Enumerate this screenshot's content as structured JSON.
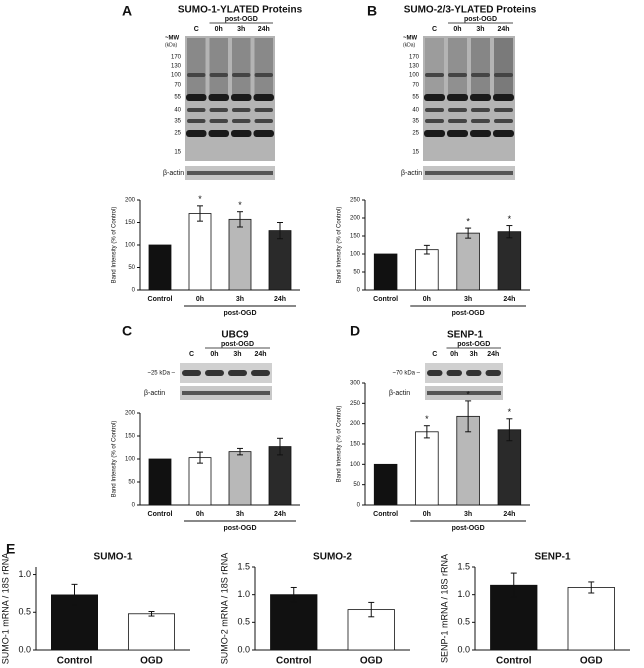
{
  "panel_labels": [
    "A",
    "B",
    "C",
    "D",
    "E"
  ],
  "blots": [
    {
      "title": "SUMO-1-YLATED Proteins",
      "group": "post-OGD",
      "lanes": [
        "C",
        "0h",
        "3h",
        "24h"
      ],
      "mw_label": "~MW",
      "mw_unit": "(kDa)",
      "mw": [
        "170",
        "130",
        "100",
        "70",
        "55",
        "40",
        "35",
        "25",
        "15"
      ],
      "loading": "β-actin"
    },
    {
      "title": "SUMO-2/3-YLATED Proteins",
      "group": "post-OGD",
      "lanes": [
        "C",
        "0h",
        "3h",
        "24h"
      ],
      "mw_label": "~MW",
      "mw_unit": "(kDa)",
      "mw": [
        "170",
        "130",
        "100",
        "70",
        "55",
        "40",
        "35",
        "25",
        "15"
      ],
      "loading": "β-actin"
    },
    {
      "title": "UBC9",
      "group": "post-OGD",
      "lanes": [
        "C",
        "0h",
        "3h",
        "24h"
      ],
      "mw_label": "~25 kDa –",
      "loading": "β-actin"
    },
    {
      "title": "SENP-1",
      "group": "post-OGD",
      "lanes": [
        "C",
        "0h",
        "3h",
        "24h"
      ],
      "mw_label": "~70 kDa –",
      "loading": "β-actin"
    }
  ],
  "chart_data": [
    {
      "type": "bar",
      "y_label": "Band Intensity (% of Control)",
      "x_group_label": "post-OGD",
      "categories": [
        "Control",
        "0h",
        "3h",
        "24h"
      ],
      "values": [
        100,
        170,
        157,
        132
      ],
      "errors": [
        0,
        17,
        17,
        18
      ],
      "markers": [
        null,
        "*",
        "*",
        null
      ],
      "colors": [
        "#111111",
        "#ffffff",
        "#b8b8b8",
        "#2a2a2a"
      ],
      "ylim": [
        0,
        200
      ],
      "yticks": [
        0,
        50,
        100,
        150,
        200
      ]
    },
    {
      "type": "bar",
      "y_label": "Band Intensity (% of Control)",
      "x_group_label": "post-OGD",
      "categories": [
        "Control",
        "0h",
        "3h",
        "24h"
      ],
      "values": [
        100,
        112,
        158,
        162
      ],
      "errors": [
        0,
        12,
        14,
        17
      ],
      "markers": [
        null,
        null,
        "*",
        "*"
      ],
      "colors": [
        "#111111",
        "#ffffff",
        "#b8b8b8",
        "#2a2a2a"
      ],
      "ylim": [
        0,
        250
      ],
      "yticks": [
        0,
        50,
        100,
        150,
        200,
        250
      ]
    },
    {
      "type": "bar",
      "y_label": "Band Intensity (% of Control)",
      "x_group_label": "post-OGD",
      "categories": [
        "Control",
        "0h",
        "3h",
        "24h"
      ],
      "values": [
        100,
        103,
        116,
        127
      ],
      "errors": [
        0,
        12,
        7,
        18
      ],
      "colors": [
        "#111111",
        "#ffffff",
        "#b8b8b8",
        "#2a2a2a"
      ],
      "ylim": [
        0,
        200
      ],
      "yticks": [
        0,
        50,
        100,
        150,
        200
      ]
    },
    {
      "type": "bar",
      "y_label": "Band Intensity (% of Control)",
      "x_group_label": "post-OGD",
      "categories": [
        "Control",
        "0h",
        "3h",
        "24h"
      ],
      "values": [
        100,
        180,
        218,
        185
      ],
      "errors": [
        0,
        15,
        38,
        27
      ],
      "markers": [
        null,
        "*",
        "*",
        "*"
      ],
      "colors": [
        "#111111",
        "#ffffff",
        "#b8b8b8",
        "#2a2a2a"
      ],
      "ylim": [
        0,
        300
      ],
      "yticks": [
        0,
        50,
        100,
        150,
        200,
        250,
        300
      ]
    },
    {
      "type": "bar",
      "title": "SUMO-1",
      "y_label": "SUMO-1 mRNA / 18S rRNA",
      "categories": [
        "Control",
        "OGD"
      ],
      "values": [
        0.73,
        0.48
      ],
      "errors": [
        0.14,
        0.03
      ],
      "colors": [
        "#111111",
        "#ffffff"
      ],
      "ylim": [
        0,
        1.1
      ],
      "yticks": [
        {
          "value": 0,
          "label": "0.0"
        },
        0.5,
        {
          "value": 1,
          "label": "1.0"
        }
      ]
    },
    {
      "type": "bar",
      "title": "SUMO-2",
      "y_label": "SUMO-2 mRNA / 18S rRNA",
      "categories": [
        "Control",
        "OGD"
      ],
      "values": [
        1.0,
        0.73
      ],
      "errors": [
        0.13,
        0.13
      ],
      "colors": [
        "#111111",
        "#ffffff"
      ],
      "ylim": [
        0,
        1.5
      ],
      "yticks": [
        {
          "value": 0,
          "label": "0.0"
        },
        0.5,
        {
          "value": 1,
          "label": "1.0"
        },
        1.5
      ]
    },
    {
      "type": "bar",
      "title": "SENP-1",
      "y_label": "SENP-1 mRNA / 18S rRNA",
      "categories": [
        "Control",
        "OGD"
      ],
      "values": [
        1.17,
        1.13
      ],
      "errors": [
        0.22,
        0.1
      ],
      "colors": [
        "#111111",
        "#ffffff"
      ],
      "ylim": [
        0,
        1.5
      ],
      "yticks": [
        {
          "value": 0,
          "label": "0.0"
        },
        0.5,
        {
          "value": 1,
          "label": "1.0"
        },
        1.5
      ]
    }
  ]
}
